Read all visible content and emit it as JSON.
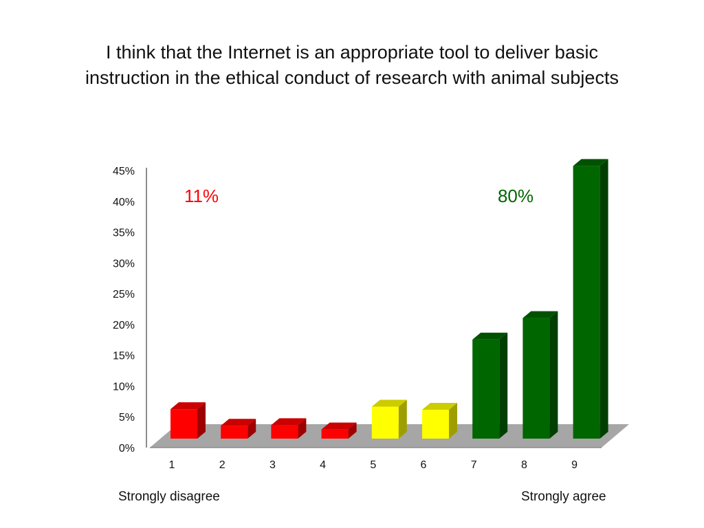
{
  "slide": {
    "title_lines": [
      "I think that the Internet is an appropriate tool to deliver basic",
      "instruction in the ethical conduct of research with animal subjects"
    ]
  },
  "chart_data": {
    "type": "bar",
    "title": "I think that the Internet is an appropriate tool to deliver basic instruction in the ethical conduct of research with animal subjects",
    "categories": [
      "1",
      "2",
      "3",
      "4",
      "5",
      "6",
      "7",
      "8",
      "9"
    ],
    "values": [
      4.9,
      2.2,
      2.3,
      1.6,
      5.3,
      4.8,
      16.2,
      19.7,
      44.4
    ],
    "value_unit": "%",
    "bar_colors": [
      "#ff0000",
      "#ff0000",
      "#ff0000",
      "#ff0000",
      "#ffff00",
      "#ffff00",
      "#006600",
      "#006600",
      "#006600"
    ],
    "ylim": [
      0,
      45
    ],
    "y_ticks": [
      "0%",
      "5%",
      "10%",
      "15%",
      "20%",
      "25%",
      "30%",
      "35%",
      "40%",
      "45%"
    ],
    "grid": false,
    "three_d": true,
    "annotations": [
      {
        "text": "11%",
        "color": "#ff0000",
        "placement": "top-left"
      },
      {
        "text": "80%",
        "color": "#006600",
        "placement": "top-right"
      }
    ],
    "scale_labels": {
      "low": "Strongly disagree",
      "high": "Strongly agree"
    }
  }
}
